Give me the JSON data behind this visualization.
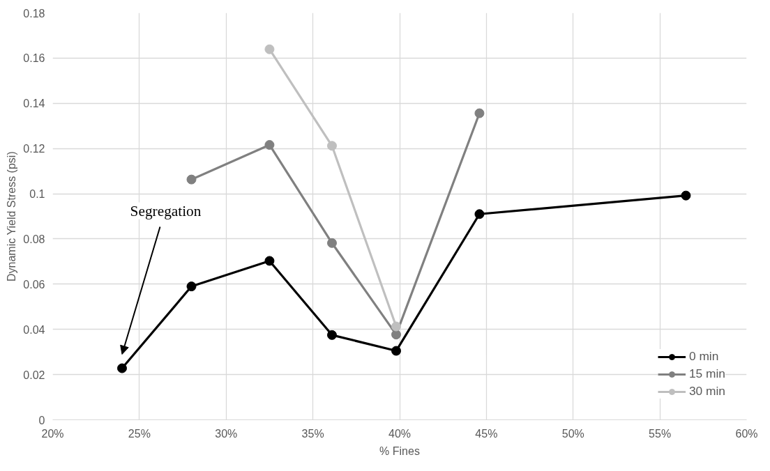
{
  "chart_data": {
    "type": "line",
    "xlabel": "% Fines",
    "ylabel": "Dynamic Yield Stress (psi)",
    "xlim": [
      20,
      60
    ],
    "xticks": [
      {
        "value": 20,
        "label": "20%"
      },
      {
        "value": 25,
        "label": "25%"
      },
      {
        "value": 30,
        "label": "30%"
      },
      {
        "value": 35,
        "label": "35%"
      },
      {
        "value": 40,
        "label": "40%"
      },
      {
        "value": 45,
        "label": "45%"
      },
      {
        "value": 50,
        "label": "50%"
      },
      {
        "value": 55,
        "label": "55%"
      },
      {
        "value": 60,
        "label": "60%"
      }
    ],
    "ylim": [
      0,
      0.18
    ],
    "yticks": [
      0,
      0.02,
      0.04,
      0.06,
      0.08,
      0.1,
      0.12,
      0.14,
      0.16,
      0.18
    ],
    "grid": true,
    "legend": "bottom right",
    "marker": "circle",
    "line_style": "solid",
    "series": [
      {
        "name": "0 min",
        "color": "#000000",
        "x": [
          24.0,
          28.0,
          32.5,
          36.1,
          39.8,
          44.6,
          56.5
        ],
        "values": [
          0.0228,
          0.059,
          0.0703,
          0.0375,
          0.0305,
          0.091,
          0.0992
        ]
      },
      {
        "name": "15 min",
        "color": "#808080",
        "x": [
          28.0,
          32.5,
          36.1,
          39.8,
          44.6
        ],
        "values": [
          0.1063,
          0.1216,
          0.0782,
          0.0377,
          0.1356
        ]
      },
      {
        "name": "30 min",
        "color": "#bfbfbf",
        "x": [
          32.5,
          36.1,
          39.8
        ],
        "values": [
          0.1639,
          0.1212,
          0.0413
        ]
      }
    ],
    "annotations": [
      "Segregation"
    ]
  }
}
